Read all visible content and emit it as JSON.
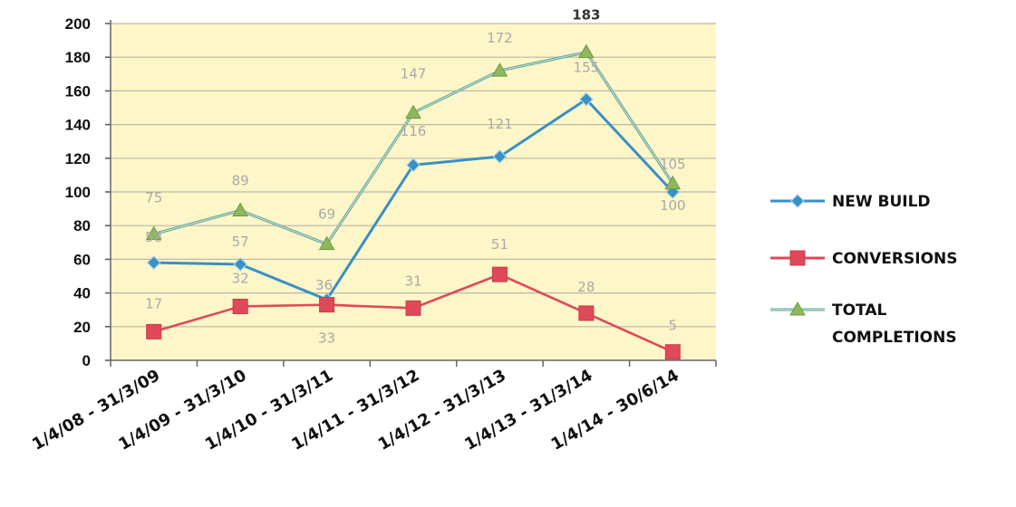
{
  "chart_data": {
    "type": "line",
    "categories": [
      "1/4/08 - 31/3/09",
      "1/4/09 - 31/3/10",
      "1/4/10 - 31/3/11",
      "1/4/11 - 31/3/12",
      "1/4/12 - 31/3/13",
      "1/4/13 - 31/3/14",
      "1/4/14 - 30/6/14"
    ],
    "ylim": [
      0,
      200
    ],
    "yticks": [
      0,
      20,
      40,
      60,
      80,
      100,
      120,
      140,
      160,
      180,
      200
    ],
    "grid": true,
    "legend_position": "right",
    "series": [
      {
        "name": "NEW BUILD",
        "color": "#3a8fc4",
        "marker": "diamond",
        "values": [
          58,
          57,
          36,
          116,
          121,
          155,
          100
        ]
      },
      {
        "name": "CONVERSIONS",
        "color": "#e0495a",
        "marker": "square",
        "values": [
          17,
          32,
          33,
          31,
          51,
          28,
          5
        ]
      },
      {
        "name": "TOTAL COMPLETIONS",
        "color": "#8fb85c",
        "marker": "triangle",
        "values": [
          75,
          89,
          69,
          147,
          172,
          183,
          105
        ]
      }
    ],
    "plot_background": "#fdf6c8"
  }
}
